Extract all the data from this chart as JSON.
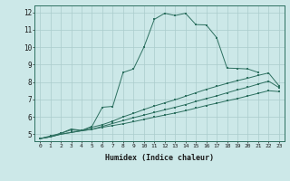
{
  "xlabel": "Humidex (Indice chaleur)",
  "bg_color": "#cce8e8",
  "grid_color": "#aacccc",
  "line_color": "#2d7060",
  "xlim": [
    -0.5,
    23.5
  ],
  "ylim": [
    4.6,
    12.4
  ],
  "xticks": [
    0,
    1,
    2,
    3,
    4,
    5,
    6,
    7,
    8,
    9,
    10,
    11,
    12,
    13,
    14,
    15,
    16,
    17,
    18,
    19,
    20,
    21,
    22,
    23
  ],
  "yticks": [
    5,
    6,
    7,
    8,
    9,
    10,
    11,
    12
  ],
  "line1_x": [
    0,
    1,
    2,
    3,
    4,
    5,
    6,
    7,
    8,
    9,
    10,
    11,
    12,
    13,
    14,
    15,
    16,
    17,
    18,
    19,
    20,
    21,
    22,
    23
  ],
  "line1_y": [
    4.75,
    4.85,
    5.0,
    5.1,
    5.2,
    5.28,
    5.4,
    5.5,
    5.6,
    5.72,
    5.85,
    5.98,
    6.1,
    6.22,
    6.35,
    6.5,
    6.65,
    6.78,
    6.92,
    7.05,
    7.2,
    7.35,
    7.5,
    7.45
  ],
  "line2_x": [
    0,
    1,
    2,
    3,
    4,
    5,
    6,
    7,
    8,
    9,
    10,
    11,
    12,
    13,
    14,
    15,
    16,
    17,
    18,
    19,
    20,
    21,
    22,
    23
  ],
  "line2_y": [
    4.75,
    4.85,
    5.0,
    5.1,
    5.2,
    5.28,
    5.45,
    5.62,
    5.78,
    5.95,
    6.1,
    6.25,
    6.4,
    6.55,
    6.7,
    6.88,
    7.05,
    7.2,
    7.38,
    7.55,
    7.7,
    7.88,
    8.05,
    7.68
  ],
  "line3_x": [
    0,
    1,
    2,
    3,
    4,
    5,
    6,
    7,
    8,
    9,
    10,
    11,
    12,
    13,
    14,
    15,
    16,
    17,
    18,
    19,
    20,
    21,
    22,
    23
  ],
  "line3_y": [
    4.75,
    4.85,
    5.05,
    5.25,
    5.2,
    5.4,
    5.55,
    5.75,
    6.0,
    6.2,
    6.42,
    6.62,
    6.8,
    6.98,
    7.18,
    7.38,
    7.58,
    7.75,
    7.92,
    8.08,
    8.22,
    8.38,
    8.52,
    7.78
  ],
  "line4_x": [
    0,
    1,
    2,
    3,
    4,
    5,
    6,
    7,
    8,
    9,
    10,
    11,
    12,
    13,
    14,
    15,
    16,
    17,
    18,
    19,
    20,
    21
  ],
  "line4_y": [
    4.75,
    4.9,
    5.05,
    5.3,
    5.22,
    5.45,
    6.55,
    6.6,
    8.55,
    8.75,
    10.0,
    11.6,
    11.95,
    11.82,
    11.95,
    11.3,
    11.28,
    10.55,
    8.8,
    8.78,
    8.75,
    8.55
  ]
}
